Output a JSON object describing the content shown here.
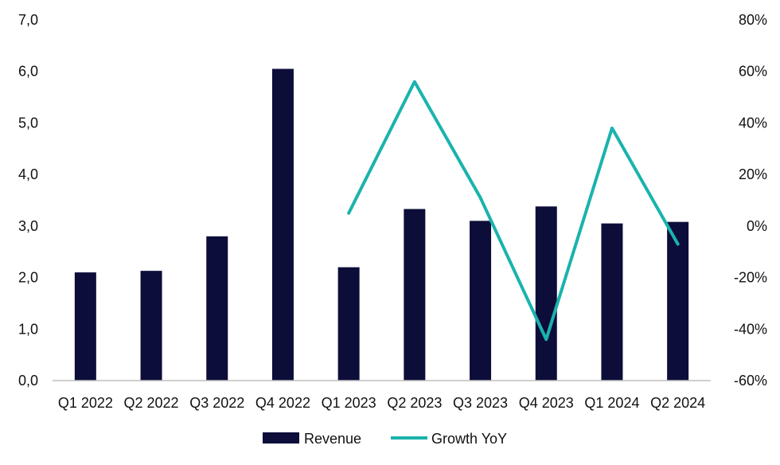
{
  "chart_data": {
    "type": "bar",
    "categories": [
      "Q1 2022",
      "Q2 2022",
      "Q3 2022",
      "Q4 2022",
      "Q1 2023",
      "Q2 2023",
      "Q3 2023",
      "Q4 2023",
      "Q1 2024",
      "Q2 2024"
    ],
    "series": [
      {
        "name": "Revenue",
        "type": "bar",
        "axis": "left",
        "color": "#0d0d3a",
        "values": [
          2.1,
          2.13,
          2.8,
          6.05,
          2.2,
          3.33,
          3.1,
          3.38,
          3.05,
          3.08
        ]
      },
      {
        "name": "Growth YoY",
        "type": "line",
        "axis": "right",
        "color": "#1ab3ad",
        "values": [
          null,
          null,
          null,
          null,
          5,
          56,
          11,
          -44,
          38,
          -7
        ]
      }
    ],
    "y_left": {
      "ylim": [
        0,
        7
      ],
      "ticks": [
        0,
        1,
        2,
        3,
        4,
        5,
        6,
        7
      ],
      "tick_labels": [
        "0,0",
        "1,0",
        "2,0",
        "3,0",
        "4,0",
        "5,0",
        "6,0",
        "7,0"
      ]
    },
    "y_right": {
      "ylim": [
        -60,
        80
      ],
      "ticks": [
        -60,
        -40,
        -20,
        0,
        20,
        40,
        60,
        80
      ],
      "tick_labels": [
        "-60%",
        "-40%",
        "-20%",
        "0%",
        "20%",
        "40%",
        "60%",
        "80%"
      ]
    },
    "title": "",
    "xlabel": "",
    "grid": false,
    "legend_position": "bottom-center"
  },
  "legend": {
    "revenue_label": "Revenue",
    "growth_label": "Growth YoY"
  }
}
